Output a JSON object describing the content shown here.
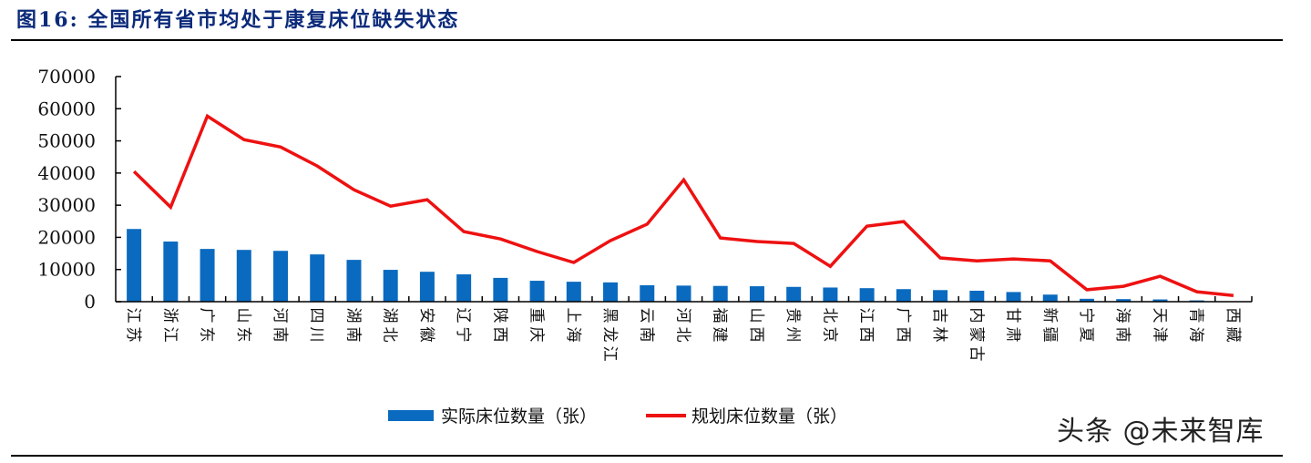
{
  "figure": {
    "title": "图16:  全国所有省市均处于康复床位缺失状态"
  },
  "legend": {
    "bar_label": "实际床位数量（张）",
    "line_label": "规划床位数量（张）"
  },
  "watermark": "头条 @未来智库",
  "colors": {
    "bar": "#0a6abf",
    "line": "#ee1111",
    "title": "#0b2a7a"
  },
  "chart_data": {
    "type": "bar+line",
    "title": "全国所有省市均处于康复床位缺失状态",
    "xlabel": "",
    "ylabel": "",
    "ylim": [
      0,
      70000
    ],
    "yticks": [
      0,
      10000,
      20000,
      30000,
      40000,
      50000,
      60000,
      70000
    ],
    "grid": false,
    "legend_position": "bottom",
    "categories": [
      "江苏",
      "浙江",
      "广东",
      "山东",
      "河南",
      "四川",
      "湖南",
      "湖北",
      "安徽",
      "辽宁",
      "陕西",
      "重庆",
      "上海",
      "黑龙江",
      "云南",
      "河北",
      "福建",
      "山西",
      "贵州",
      "北京",
      "江西",
      "广西",
      "吉林",
      "内蒙古",
      "甘肃",
      "新疆",
      "宁夏",
      "海南",
      "天津",
      "青海",
      "西藏"
    ],
    "series": [
      {
        "name": "实际床位数量（张）",
        "type": "bar",
        "values": [
          22600,
          18700,
          16400,
          16100,
          15800,
          14700,
          13000,
          9900,
          9300,
          8500,
          7400,
          6500,
          6200,
          6000,
          5100,
          5000,
          4900,
          4800,
          4600,
          4400,
          4200,
          3900,
          3600,
          3400,
          3000,
          2200,
          900,
          800,
          700,
          400,
          0
        ]
      },
      {
        "name": "规划床位数量（张）",
        "type": "line",
        "values": [
          40500,
          29400,
          57700,
          50400,
          48100,
          42200,
          34800,
          29700,
          31700,
          21800,
          19500,
          15600,
          12200,
          19000,
          24100,
          37900,
          19800,
          18700,
          18100,
          11000,
          23500,
          24900,
          13600,
          12700,
          13300,
          12700,
          3700,
          4800,
          7900,
          3100,
          1900
        ]
      }
    ]
  }
}
